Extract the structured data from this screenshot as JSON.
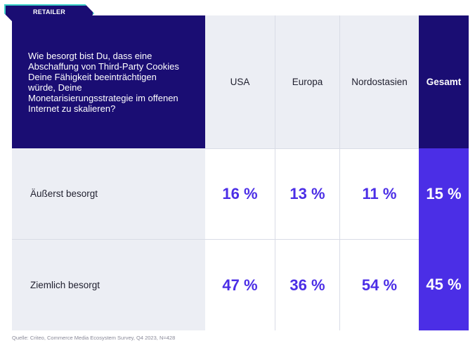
{
  "tag": "RETAILER",
  "chart_data": {
    "type": "table",
    "question": "Wie besorgt bist Du, dass eine Abschaffung von Third-Party Cookies Deine Fähigkeit beeinträchtigen würde, Deine Monetarisierungsstrategie im offenen Internet zu skalieren?",
    "columns": [
      "USA",
      "Europa",
      "Nordostasien",
      "Gesamt"
    ],
    "rows": [
      {
        "label": "Äußerst besorgt",
        "values": [
          16,
          13,
          11,
          15
        ],
        "display": [
          "16 %",
          "13 %",
          "11 %",
          "15 %"
        ]
      },
      {
        "label": "Ziemlich besorgt",
        "values": [
          47,
          36,
          54,
          45
        ],
        "display": [
          "47 %",
          "36 %",
          "54 %",
          "45 %"
        ]
      }
    ],
    "unit": "%"
  },
  "colors": {
    "header_bg": "#1a0d73",
    "accent": "#4b2ee6",
    "tag_border": "#3fd3c8",
    "light_bg": "#eceef4"
  },
  "source": "Quelle: Criteo, Commerce Media Ecosystem Survey, Q4 2023, N=428"
}
